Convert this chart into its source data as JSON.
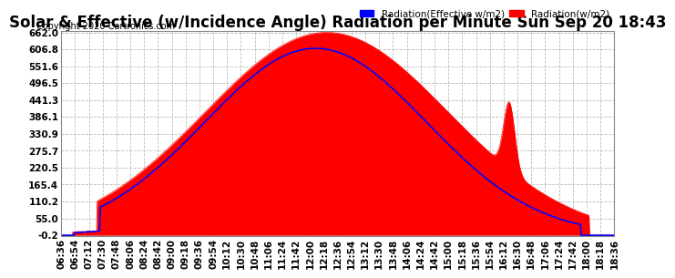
{
  "title": "Solar & Effective (w/Incidence Angle) Radiation per Minute Sun Sep 20 18:43",
  "copyright": "Copyright 2020 Cartronics.com",
  "legend_blue": "Radiation(Effective w/m2)",
  "legend_red": "Radiation(w/m2)",
  "yticks": [
    -0.2,
    55.0,
    110.2,
    165.4,
    220.5,
    275.7,
    330.9,
    386.1,
    441.3,
    496.5,
    551.6,
    606.8,
    662.0
  ],
  "ylim": [
    -0.2,
    662.0
  ],
  "background_color": "#ffffff",
  "plot_bg_color": "#ffffff",
  "grid_color": "#aaaaaa",
  "red_color": "#ff0000",
  "blue_color": "#0000ff",
  "title_fontsize": 12,
  "copyright_fontsize": 7,
  "tick_fontsize": 7.5,
  "xtick_labels": [
    "06:36",
    "06:54",
    "07:12",
    "07:30",
    "07:48",
    "08:06",
    "08:24",
    "08:42",
    "09:00",
    "09:18",
    "09:36",
    "09:54",
    "10:12",
    "10:30",
    "10:48",
    "11:06",
    "11:24",
    "11:42",
    "12:00",
    "12:18",
    "12:36",
    "12:54",
    "13:12",
    "13:30",
    "13:48",
    "14:06",
    "14:24",
    "14:42",
    "15:00",
    "15:18",
    "15:36",
    "15:54",
    "16:12",
    "16:30",
    "16:48",
    "17:06",
    "17:24",
    "17:42",
    "18:00",
    "18:18",
    "18:36"
  ]
}
